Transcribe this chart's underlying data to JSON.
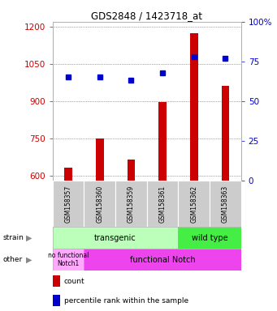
{
  "title": "GDS2848 / 1423718_at",
  "samples": [
    "GSM158357",
    "GSM158360",
    "GSM158359",
    "GSM158361",
    "GSM158362",
    "GSM158363"
  ],
  "counts": [
    630,
    750,
    665,
    895,
    1175,
    960
  ],
  "percentiles": [
    65,
    65,
    63,
    68,
    78,
    77
  ],
  "ylim_left": [
    580,
    1220
  ],
  "ylim_right": [
    0,
    100
  ],
  "yticks_left": [
    600,
    750,
    900,
    1050,
    1200
  ],
  "yticks_right": [
    0,
    25,
    50,
    75,
    100
  ],
  "bar_color": "#cc0000",
  "dot_color": "#0000cc",
  "strain_color_transgenic": "#bbffbb",
  "strain_color_wildtype": "#44ee44",
  "other_color_nofunc": "#ffaaff",
  "other_color_func": "#ee44ee",
  "sample_box_color": "#cccccc",
  "grid_color": "#555555",
  "background_color": "#ffffff",
  "label_color_left": "#cc0000",
  "label_color_right": "#0000cc",
  "bar_width": 0.25
}
